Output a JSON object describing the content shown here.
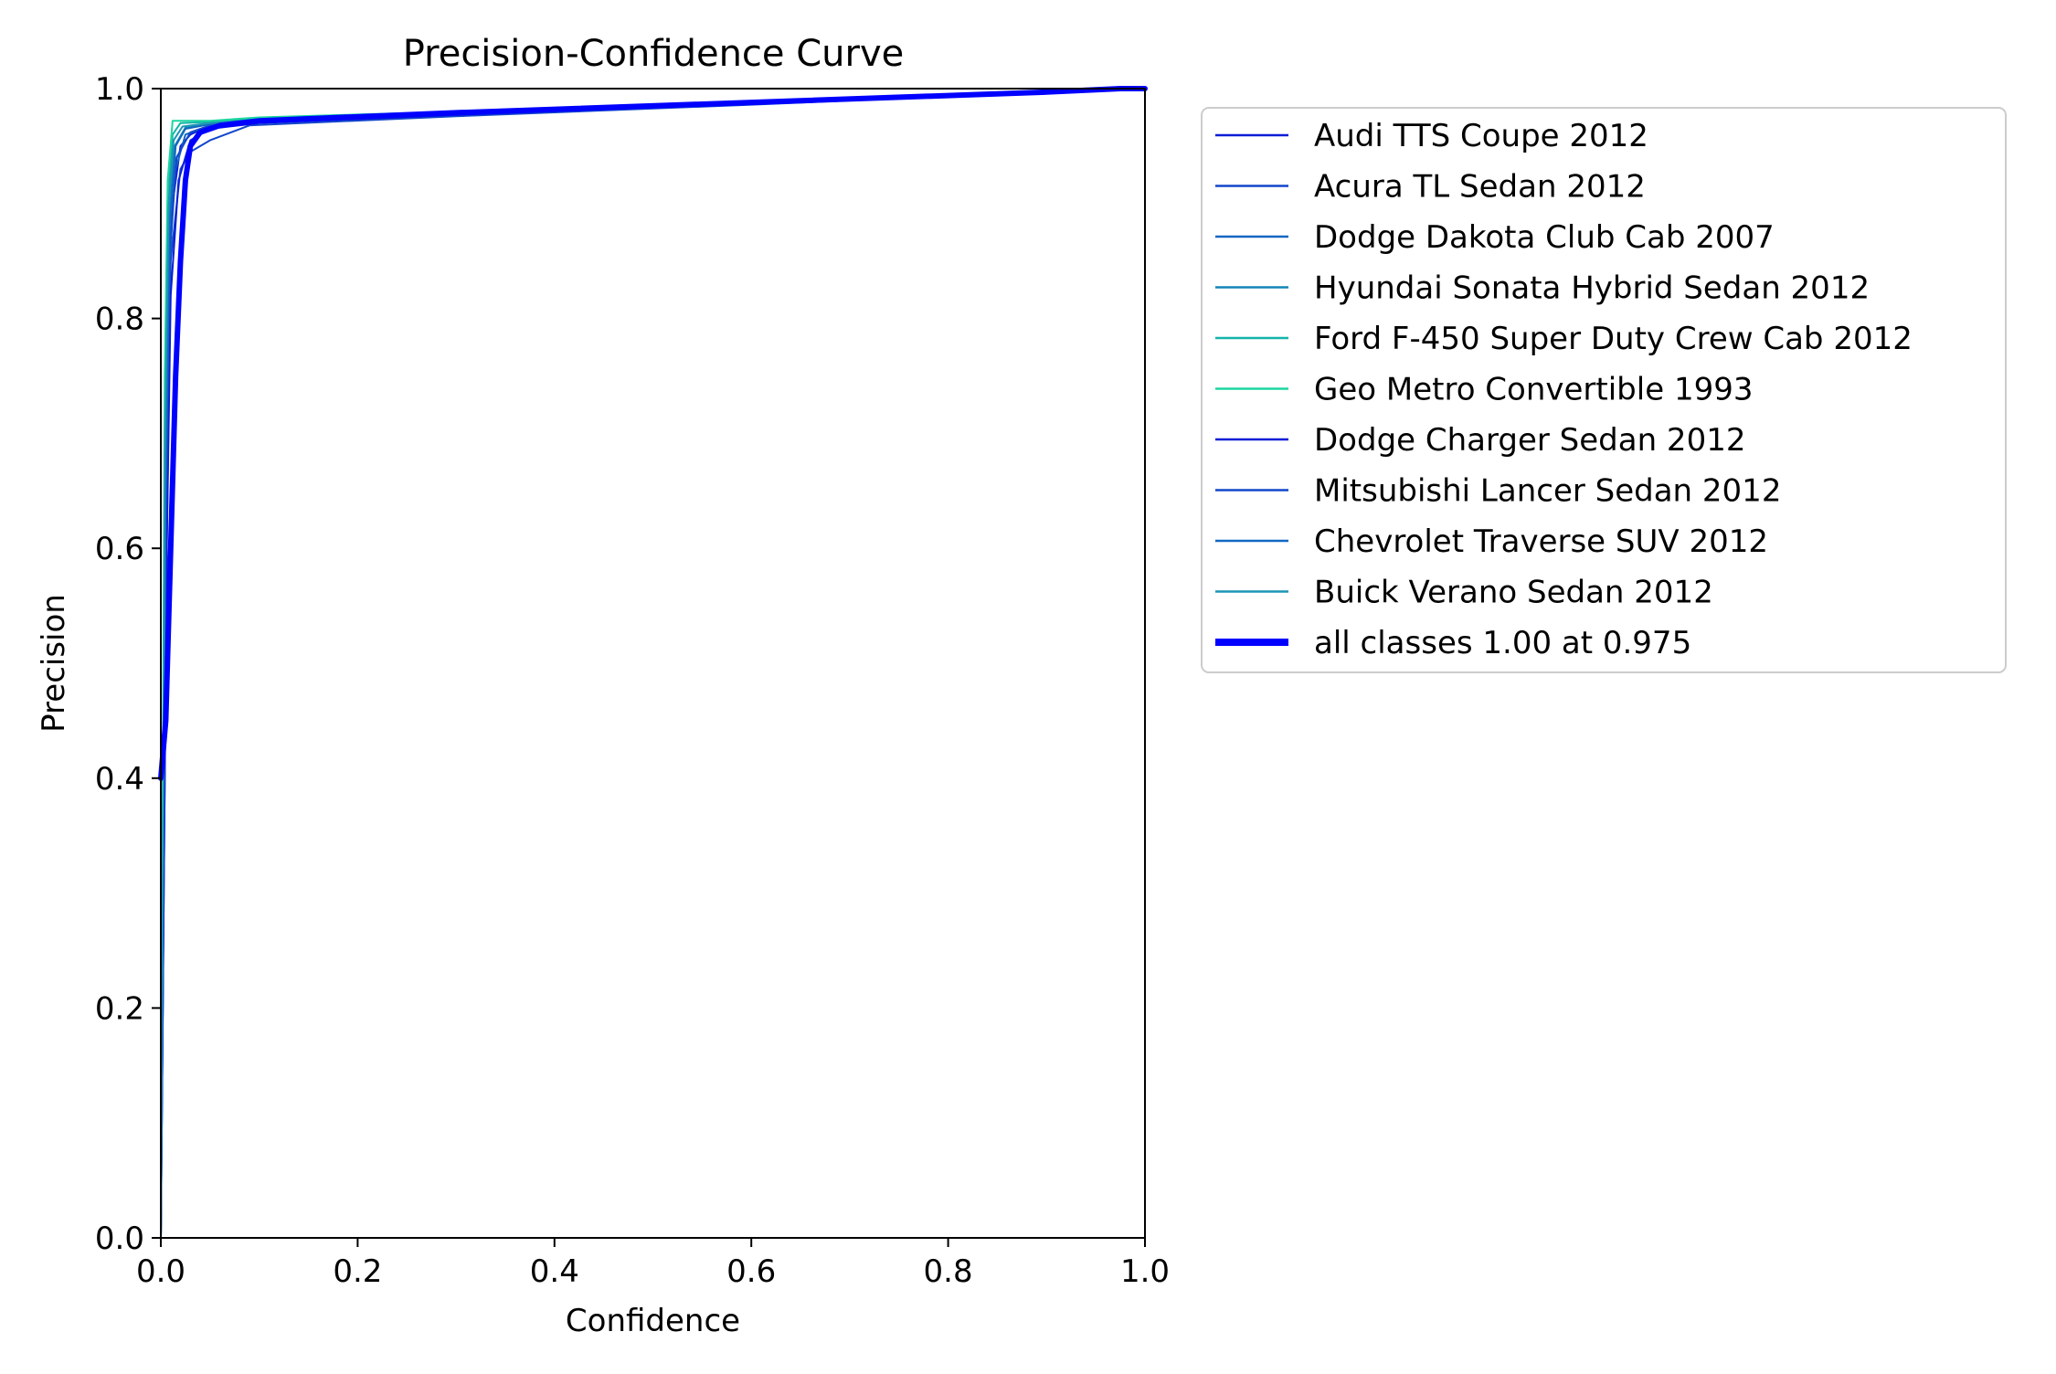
{
  "chart_data": {
    "type": "line",
    "title": "Precision-Confidence Curve",
    "xlabel": "Confidence",
    "ylabel": "Precision",
    "xlim": [
      0,
      1
    ],
    "ylim": [
      0,
      1
    ],
    "xticks": [
      "0.0",
      "0.2",
      "0.4",
      "0.6",
      "0.8",
      "1.0"
    ],
    "yticks": [
      "0.0",
      "0.2",
      "0.4",
      "0.6",
      "0.8",
      "1.0"
    ],
    "grid": false,
    "legend_position": "outside-right-top",
    "series": [
      {
        "name": "Audi TTS Coupe 2012",
        "color": "#0a1ed6",
        "width": 1,
        "points": [
          [
            0,
            0.0
          ],
          [
            0.002,
            0.2
          ],
          [
            0.004,
            0.5
          ],
          [
            0.007,
            0.8
          ],
          [
            0.012,
            0.9
          ],
          [
            0.02,
            0.95
          ],
          [
            0.03,
            0.96
          ],
          [
            0.05,
            0.968
          ],
          [
            0.1,
            0.972
          ],
          [
            0.3,
            0.978
          ],
          [
            0.6,
            0.987
          ],
          [
            0.9,
            0.997
          ],
          [
            1.0,
            1.0
          ]
        ]
      },
      {
        "name": "Acura TL Sedan 2012",
        "color": "#1246cc",
        "width": 1,
        "points": [
          [
            0,
            0.0
          ],
          [
            0.003,
            0.3
          ],
          [
            0.006,
            0.6
          ],
          [
            0.01,
            0.85
          ],
          [
            0.02,
            0.93
          ],
          [
            0.03,
            0.945
          ],
          [
            0.05,
            0.955
          ],
          [
            0.09,
            0.968
          ],
          [
            0.3,
            0.976
          ],
          [
            0.6,
            0.986
          ],
          [
            0.9,
            0.997
          ],
          [
            1.0,
            1.0
          ]
        ]
      },
      {
        "name": "Dodge Dakota Club Cab 2007",
        "color": "#1267c2",
        "width": 1,
        "points": [
          [
            0,
            0.0
          ],
          [
            0.002,
            0.25
          ],
          [
            0.005,
            0.6
          ],
          [
            0.009,
            0.85
          ],
          [
            0.015,
            0.93
          ],
          [
            0.025,
            0.96
          ],
          [
            0.05,
            0.968
          ],
          [
            0.1,
            0.972
          ],
          [
            0.3,
            0.978
          ],
          [
            0.6,
            0.987
          ],
          [
            0.9,
            0.997
          ],
          [
            1.0,
            1.0
          ]
        ]
      },
      {
        "name": "Hyundai Sonata Hybrid Sedan 2012",
        "color": "#1385b7",
        "width": 1,
        "points": [
          [
            0,
            0.0
          ],
          [
            0.002,
            0.3
          ],
          [
            0.004,
            0.65
          ],
          [
            0.008,
            0.88
          ],
          [
            0.014,
            0.95
          ],
          [
            0.025,
            0.966
          ],
          [
            0.05,
            0.97
          ],
          [
            0.1,
            0.973
          ],
          [
            0.3,
            0.979
          ],
          [
            0.6,
            0.988
          ],
          [
            0.9,
            0.997
          ],
          [
            1.0,
            1.0
          ]
        ]
      },
      {
        "name": "Ford F-450 Super Duty Crew Cab 2012",
        "color": "#12b5a9",
        "width": 1,
        "points": [
          [
            0,
            0.0
          ],
          [
            0.002,
            0.35
          ],
          [
            0.004,
            0.7
          ],
          [
            0.007,
            0.9
          ],
          [
            0.012,
            0.96
          ],
          [
            0.02,
            0.97
          ],
          [
            0.05,
            0.971
          ],
          [
            0.1,
            0.974
          ],
          [
            0.3,
            0.979
          ],
          [
            0.6,
            0.988
          ],
          [
            0.9,
            0.997
          ],
          [
            1.0,
            1.0
          ]
        ]
      },
      {
        "name": "Geo Metro Convertible 1993",
        "color": "#1dd6a0",
        "width": 1,
        "points": [
          [
            0,
            0.0
          ],
          [
            0.002,
            0.4
          ],
          [
            0.004,
            0.75
          ],
          [
            0.007,
            0.92
          ],
          [
            0.012,
            0.972
          ],
          [
            0.05,
            0.972
          ],
          [
            0.1,
            0.975
          ],
          [
            0.3,
            0.98
          ],
          [
            0.6,
            0.988
          ],
          [
            0.9,
            0.997
          ],
          [
            1.0,
            1.0
          ]
        ]
      },
      {
        "name": "Dodge Charger Sedan 2012",
        "color": "#0a1ed6",
        "width": 1,
        "points": [
          [
            0,
            0.0
          ],
          [
            0.003,
            0.3
          ],
          [
            0.006,
            0.6
          ],
          [
            0.01,
            0.82
          ],
          [
            0.018,
            0.92
          ],
          [
            0.03,
            0.955
          ],
          [
            0.05,
            0.965
          ],
          [
            0.1,
            0.97
          ],
          [
            0.3,
            0.977
          ],
          [
            0.6,
            0.987
          ],
          [
            0.9,
            0.997
          ],
          [
            1.0,
            1.0
          ]
        ]
      },
      {
        "name": "Mitsubishi Lancer Sedan 2012",
        "color": "#1246cc",
        "width": 1,
        "points": [
          [
            0,
            0.0
          ],
          [
            0.002,
            0.28
          ],
          [
            0.005,
            0.62
          ],
          [
            0.009,
            0.86
          ],
          [
            0.016,
            0.94
          ],
          [
            0.03,
            0.962
          ],
          [
            0.05,
            0.968
          ],
          [
            0.1,
            0.972
          ],
          [
            0.3,
            0.978
          ],
          [
            0.6,
            0.987
          ],
          [
            0.9,
            0.997
          ],
          [
            1.0,
            1.0
          ]
        ]
      },
      {
        "name": "Chevrolet Traverse SUV 2012",
        "color": "#1267c2",
        "width": 1,
        "points": [
          [
            0,
            0.0
          ],
          [
            0.002,
            0.3
          ],
          [
            0.005,
            0.66
          ],
          [
            0.009,
            0.88
          ],
          [
            0.015,
            0.95
          ],
          [
            0.025,
            0.965
          ],
          [
            0.05,
            0.969
          ],
          [
            0.1,
            0.973
          ],
          [
            0.3,
            0.979
          ],
          [
            0.6,
            0.988
          ],
          [
            0.9,
            0.997
          ],
          [
            1.0,
            1.0
          ]
        ]
      },
      {
        "name": "Buick Verano Sedan 2012",
        "color": "#1c96b5",
        "width": 1,
        "points": [
          [
            0,
            0.0
          ],
          [
            0.002,
            0.33
          ],
          [
            0.004,
            0.68
          ],
          [
            0.008,
            0.9
          ],
          [
            0.013,
            0.955
          ],
          [
            0.022,
            0.967
          ],
          [
            0.05,
            0.97
          ],
          [
            0.1,
            0.973
          ],
          [
            0.3,
            0.979
          ],
          [
            0.6,
            0.988
          ],
          [
            0.9,
            0.997
          ],
          [
            1.0,
            1.0
          ]
        ]
      },
      {
        "name": "all classes 1.00 at 0.975",
        "color": "#0000ff",
        "width": 3,
        "points": [
          [
            0,
            0.4
          ],
          [
            0.005,
            0.45
          ],
          [
            0.01,
            0.6
          ],
          [
            0.015,
            0.75
          ],
          [
            0.02,
            0.85
          ],
          [
            0.025,
            0.92
          ],
          [
            0.03,
            0.95
          ],
          [
            0.04,
            0.962
          ],
          [
            0.06,
            0.968
          ],
          [
            0.1,
            0.972
          ],
          [
            0.3,
            0.979
          ],
          [
            0.6,
            0.988
          ],
          [
            0.9,
            0.997
          ],
          [
            0.975,
            1.0
          ],
          [
            1.0,
            1.0
          ]
        ]
      }
    ]
  }
}
